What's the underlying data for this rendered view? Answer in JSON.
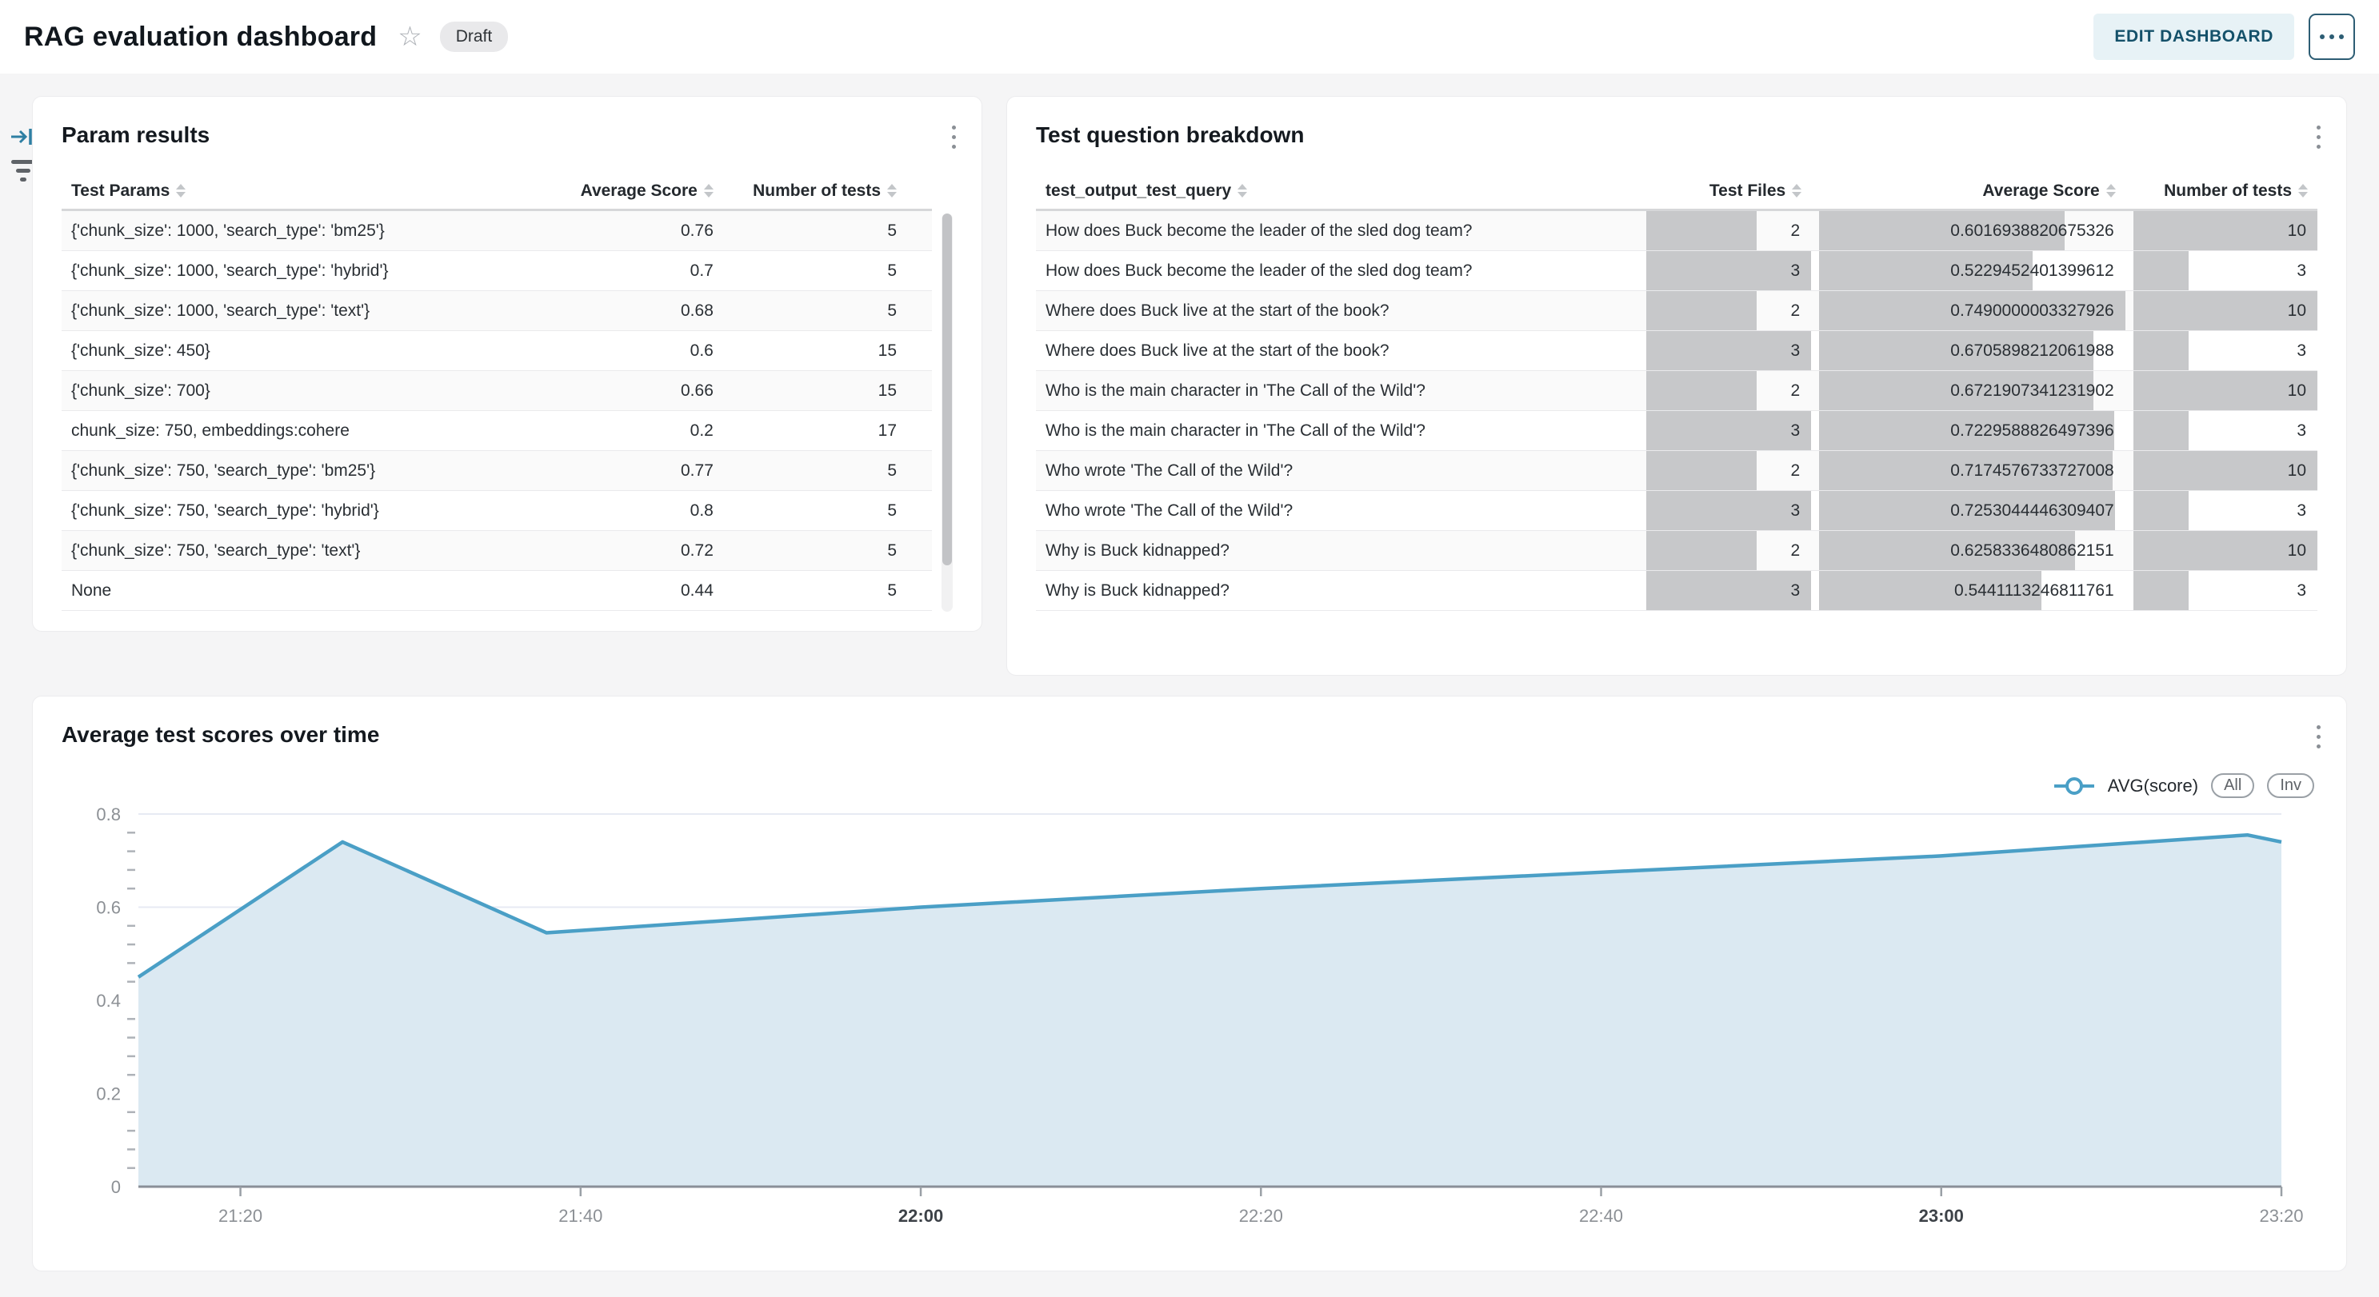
{
  "header": {
    "title": "RAG evaluation dashboard",
    "status_badge": "Draft",
    "edit_button": "EDIT DASHBOARD"
  },
  "param_results": {
    "title": "Param results",
    "columns": [
      "Test Params",
      "Average Score",
      "Number of tests"
    ],
    "rows": [
      {
        "params": "{'chunk_size': 1000, 'search_type': 'bm25'}",
        "avg_score": "0.76",
        "num_tests": "5"
      },
      {
        "params": "{'chunk_size': 1000, 'search_type': 'hybrid'}",
        "avg_score": "0.7",
        "num_tests": "5"
      },
      {
        "params": "{'chunk_size': 1000, 'search_type': 'text'}",
        "avg_score": "0.68",
        "num_tests": "5"
      },
      {
        "params": "{'chunk_size': 450}",
        "avg_score": "0.6",
        "num_tests": "15"
      },
      {
        "params": "{'chunk_size': 700}",
        "avg_score": "0.66",
        "num_tests": "15"
      },
      {
        "params": "chunk_size: 750, embeddings:cohere",
        "avg_score": "0.2",
        "num_tests": "17"
      },
      {
        "params": "{'chunk_size': 750, 'search_type': 'bm25'}",
        "avg_score": "0.77",
        "num_tests": "5"
      },
      {
        "params": "{'chunk_size': 750, 'search_type': 'hybrid'}",
        "avg_score": "0.8",
        "num_tests": "5"
      },
      {
        "params": "{'chunk_size': 750, 'search_type': 'text'}",
        "avg_score": "0.72",
        "num_tests": "5"
      },
      {
        "params": "None",
        "avg_score": "0.44",
        "num_tests": "5"
      }
    ]
  },
  "breakdown": {
    "title": "Test question breakdown",
    "columns": [
      "test_output_test_query",
      "Test Files",
      "Average Score",
      "Number of tests"
    ],
    "bar_max": {
      "test_files": 3,
      "avg_score": 0.7490000003327926,
      "num_tests": 10
    },
    "rows": [
      {
        "query": "How does Buck become the leader of the sled dog team?",
        "test_files": "2",
        "avg_score": "0.6016938820675326",
        "num_tests": "10"
      },
      {
        "query": "How does Buck become the leader of the sled dog team?",
        "test_files": "3",
        "avg_score": "0.5229452401399612",
        "num_tests": "3"
      },
      {
        "query": "Where does Buck live at the start of the book?",
        "test_files": "2",
        "avg_score": "0.7490000003327926",
        "num_tests": "10"
      },
      {
        "query": "Where does Buck live at the start of the book?",
        "test_files": "3",
        "avg_score": "0.6705898212061988",
        "num_tests": "3"
      },
      {
        "query": "Who is the main character in 'The Call of the Wild'?",
        "test_files": "2",
        "avg_score": "0.6721907341231902",
        "num_tests": "10"
      },
      {
        "query": "Who is the main character in 'The Call of the Wild'?",
        "test_files": "3",
        "avg_score": "0.7229588826497396",
        "num_tests": "3"
      },
      {
        "query": "Who wrote 'The Call of the Wild'?",
        "test_files": "2",
        "avg_score": "0.7174576733727008",
        "num_tests": "10"
      },
      {
        "query": "Who wrote 'The Call of the Wild'?",
        "test_files": "3",
        "avg_score": "0.7253044446309407",
        "num_tests": "3"
      },
      {
        "query": "Why is Buck kidnapped?",
        "test_files": "2",
        "avg_score": "0.6258336480862151",
        "num_tests": "10"
      },
      {
        "query": "Why is Buck kidnapped?",
        "test_files": "3",
        "avg_score": "0.5441113246811761",
        "num_tests": "3"
      }
    ]
  },
  "chart_data": {
    "type": "area",
    "title": "Average test scores over time",
    "legend": {
      "label": "AVG(score)",
      "buttons": [
        "All",
        "Inv"
      ]
    },
    "series": [
      {
        "name": "AVG(score)",
        "points": [
          {
            "time": "21:14",
            "value": 0.45
          },
          {
            "time": "21:26",
            "value": 0.74
          },
          {
            "time": "21:38",
            "value": 0.545
          },
          {
            "time": "22:00",
            "value": 0.6
          },
          {
            "time": "22:20",
            "value": 0.64
          },
          {
            "time": "22:40",
            "value": 0.675
          },
          {
            "time": "23:00",
            "value": 0.71
          },
          {
            "time": "23:18",
            "value": 0.755
          },
          {
            "time": "23:20",
            "value": 0.74
          }
        ]
      }
    ],
    "x_tick_labels": [
      "21:20",
      "21:40",
      "22:00",
      "22:20",
      "22:40",
      "23:00",
      "23:20"
    ],
    "x_bold_ticks": [
      "22:00",
      "23:00"
    ],
    "x_range": [
      "21:14",
      "23:20"
    ],
    "ylim": [
      0,
      0.8
    ],
    "y_major_ticks": [
      "0",
      "0.2",
      "0.4",
      "0.6",
      "0.8"
    ],
    "y_minor_step": 0.04,
    "grid": true,
    "legend_position": "top-right",
    "colors": {
      "line": "#4a9fc6",
      "fill": "#dbe9f2",
      "grid": "#e7eaf3",
      "axis": "#8a8f98"
    }
  }
}
